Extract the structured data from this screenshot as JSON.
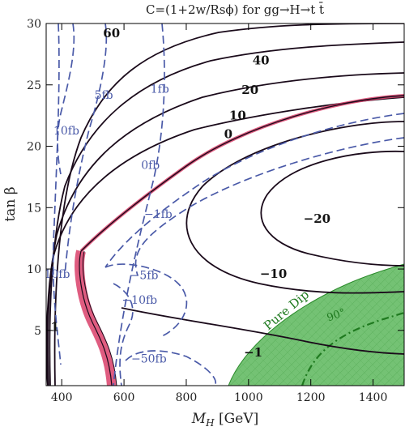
{
  "chart_data": {
    "type": "contour",
    "title": "C=(1+2w/Rsϕ) for gg→H→t t̄",
    "xlabel": "M_H [GeV]",
    "ylabel": "tan β",
    "xlim": [
      350,
      1500
    ],
    "ylim": [
      0.5,
      30
    ],
    "xticks": [
      400,
      600,
      800,
      1000,
      1200,
      1400
    ],
    "yticks": [
      5,
      10,
      15,
      20,
      25,
      30
    ],
    "grid": false,
    "colors": {
      "solid_contour": "#1a0a1a",
      "dashed_contour": "#4a5aa8",
      "red_band": "#d9406a",
      "shaded_region": "#6fbf6f",
      "shaded_edge": "#2a8a2a",
      "angle_line": "#1f7a1f"
    },
    "solid_contour_labels": [
      {
        "text": "60",
        "x": 560,
        "y": 29.2
      },
      {
        "text": "40",
        "x": 1040,
        "y": 27.0
      },
      {
        "text": "20",
        "x": 1005,
        "y": 24.6
      },
      {
        "text": "10",
        "x": 965,
        "y": 22.5
      },
      {
        "text": "0",
        "x": 935,
        "y": 21.0
      },
      {
        "text": "−20",
        "x": 1220,
        "y": 14.1
      },
      {
        "text": "−10",
        "x": 1080,
        "y": 9.6
      },
      {
        "text": "−1",
        "x": 1015,
        "y": 3.2
      },
      {
        "text": "1",
        "x": 378,
        "y": 5.3
      }
    ],
    "dashed_contour_labels": [
      {
        "text": "1fb",
        "x": 715,
        "y": 24.7
      },
      {
        "text": "5fb",
        "x": 535,
        "y": 24.2
      },
      {
        "text": "10fb",
        "x": 415,
        "y": 21.3
      },
      {
        "text": "0fb",
        "x": 685,
        "y": 18.5
      },
      {
        "text": "−1fb",
        "x": 710,
        "y": 14.5
      },
      {
        "text": "10fb",
        "x": 385,
        "y": 9.6
      },
      {
        "text": "−5fb",
        "x": 665,
        "y": 9.5
      },
      {
        "text": "−10fb",
        "x": 650,
        "y": 7.5
      },
      {
        "text": "−50fb",
        "x": 680,
        "y": 2.7
      }
    ],
    "region_labels": [
      {
        "text": "Pure Dip",
        "x": 1130,
        "y": 6.4
      },
      {
        "text": "90°",
        "x": 1285,
        "y": 6.0
      }
    ]
  }
}
